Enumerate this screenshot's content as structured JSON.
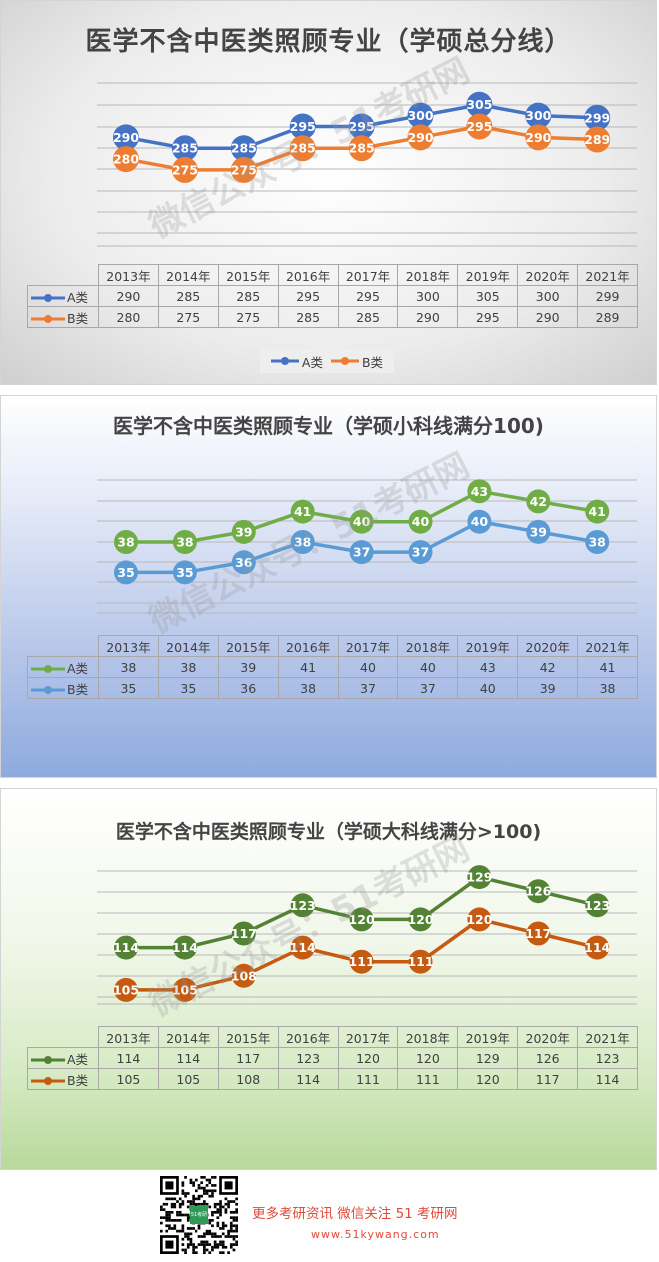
{
  "chart_data": [
    {
      "type": "line",
      "title": "医学不含中医类照顾专业（学硕总分线）",
      "categories": [
        "2013年",
        "2014年",
        "2015年",
        "2016年",
        "2017年",
        "2018年",
        "2019年",
        "2020年",
        "2021年"
      ],
      "series": [
        {
          "name": "A类",
          "values": [
            290,
            285,
            285,
            295,
            295,
            300,
            305,
            300,
            299
          ],
          "color": "#4472c4"
        },
        {
          "name": "B类",
          "values": [
            280,
            275,
            275,
            285,
            285,
            290,
            295,
            290,
            289
          ],
          "color": "#ed7d31"
        }
      ],
      "ylim": [
        240,
        315
      ],
      "grid": true,
      "legend": "bottom",
      "data_table": true
    },
    {
      "type": "line",
      "title": "医学不含中医类照顾专业（学硕小科线满分100)",
      "categories": [
        "2013年",
        "2014年",
        "2015年",
        "2016年",
        "2017年",
        "2018年",
        "2019年",
        "2020年",
        "2021年"
      ],
      "series": [
        {
          "name": "A类",
          "values": [
            38,
            38,
            39,
            41,
            40,
            40,
            43,
            42,
            41
          ],
          "color": "#70ad47"
        },
        {
          "name": "B类",
          "values": [
            35,
            35,
            36,
            38,
            37,
            37,
            40,
            39,
            38
          ],
          "color": "#5b9bd5"
        }
      ],
      "ylim": [
        31,
        45
      ],
      "grid": true,
      "data_table": true
    },
    {
      "type": "line",
      "title": "医学不含中医类照顾专业（学硕大科线满分>100)",
      "categories": [
        "2013年",
        "2014年",
        "2015年",
        "2016年",
        "2017年",
        "2018年",
        "2019年",
        "2020年",
        "2021年"
      ],
      "series": [
        {
          "name": "A类",
          "values": [
            114,
            114,
            117,
            123,
            120,
            120,
            129,
            126,
            123
          ],
          "color": "#548235"
        },
        {
          "name": "B类",
          "values": [
            105,
            105,
            108,
            114,
            111,
            111,
            120,
            117,
            114
          ],
          "color": "#c55a11"
        }
      ],
      "ylim": [
        102,
        132
      ],
      "grid": true,
      "data_table": true
    }
  ],
  "watermark": "微信公众号：51考研网",
  "footer": {
    "qr_badge": "51考研网",
    "line1": "更多考研资讯  微信关注 51 考研网",
    "line2": "www.51kywang.com"
  }
}
